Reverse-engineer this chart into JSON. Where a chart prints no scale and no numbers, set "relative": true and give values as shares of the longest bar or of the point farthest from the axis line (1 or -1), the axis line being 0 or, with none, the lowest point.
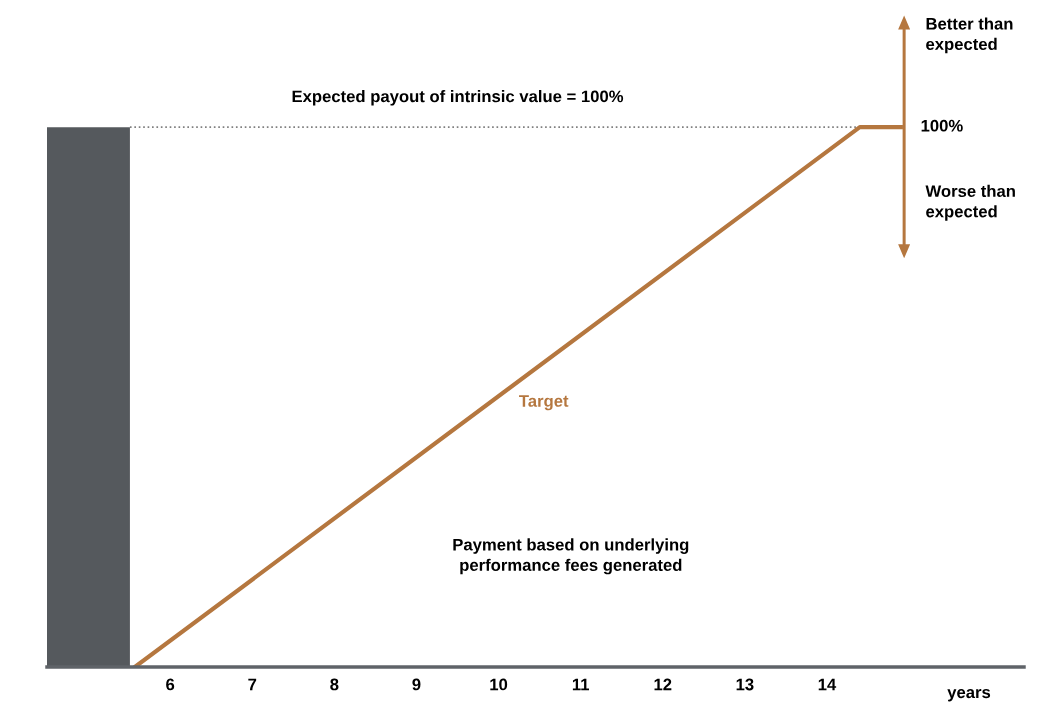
{
  "chart_data": {
    "type": "line",
    "relative": true,
    "x": [
      5.57,
      14.4,
      14.9
    ],
    "xlim": [
      4.5,
      16.4
    ],
    "xticks": [
      6,
      7,
      8,
      9,
      10,
      11,
      12,
      13,
      14
    ],
    "xlabel": "years",
    "tick_labels": "x",
    "grid": false,
    "marker": "none",
    "line_style": "solid",
    "series": [
      {
        "color": "#b5773f",
        "values": [
          0,
          1,
          1
        ]
      }
    ],
    "bands": [
      {
        "axis": "x",
        "from": 4.5,
        "to": 5.51,
        "color": "#55595d"
      }
    ],
    "ref_lines": [
      {
        "axis": "y",
        "value": 1,
        "label": "Expected payout of intrinsic value = 100%",
        "color": "#808080",
        "line_style": "dotted"
      }
    ],
    "annotations": [
      "Target",
      "100%",
      "Better than\nexpected",
      "Worse than\nexpected",
      "Payment based on underlying\nperformance fees generated"
    ]
  }
}
